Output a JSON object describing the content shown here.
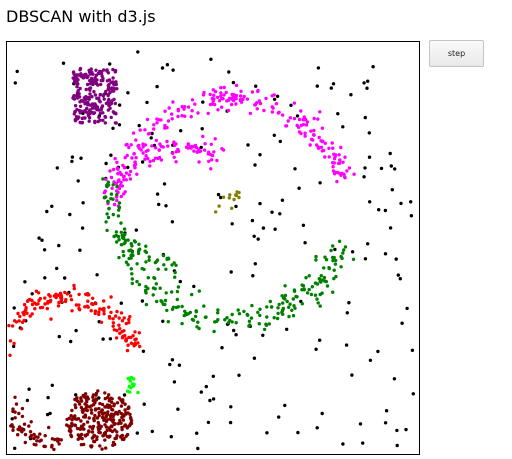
{
  "page": {
    "title": "DBSCAN with d3.js"
  },
  "controls": {
    "step_label": "step"
  },
  "plot": {
    "clusters": [
      {
        "name": "purple",
        "color": "#800080"
      },
      {
        "name": "magenta",
        "color": "#ff00ff"
      },
      {
        "name": "green",
        "color": "#008000"
      },
      {
        "name": "olive",
        "color": "#808000"
      },
      {
        "name": "red",
        "color": "#ff0000"
      },
      {
        "name": "lime",
        "color": "#00ff00"
      },
      {
        "name": "maroon",
        "color": "#800000"
      }
    ],
    "noise_color": "#000000"
  }
}
